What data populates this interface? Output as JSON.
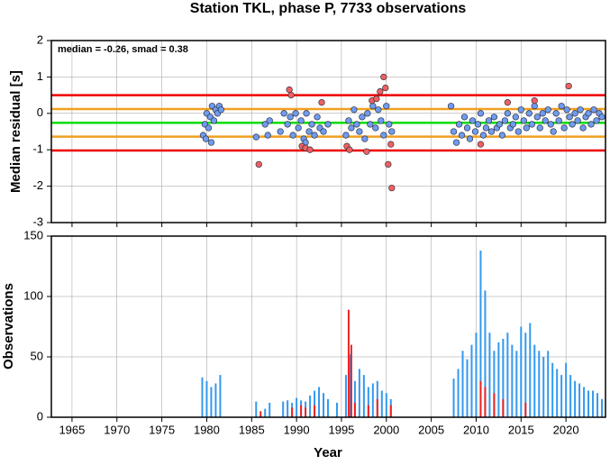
{
  "chart_data": [
    {
      "type": "scatter",
      "title": "Station TKL, phase P, 7733 observations",
      "ylabel": "Median residual [s]",
      "annotation": "median = -0.26, smad = 0.38",
      "xlim": [
        1962.7,
        2024.4
      ],
      "ylim": [
        -3,
        2
      ],
      "yticks": [
        -3,
        -2,
        -1,
        0,
        1,
        2
      ],
      "grid": true,
      "hlines": [
        {
          "value": 0.5,
          "color": "#ee0000"
        },
        {
          "value": -1.02,
          "color": "#ee0000"
        },
        {
          "value": 0.12,
          "color": "#f0a020"
        },
        {
          "value": -0.64,
          "color": "#f0a020"
        },
        {
          "value": -0.26,
          "color": "#00dd00"
        }
      ],
      "series": [
        {
          "color": "#6e9cf0",
          "x": [
            1979.6,
            1979.8,
            1980.0,
            1980.2,
            1980.4,
            1980.6,
            1980.8,
            1981.0,
            1981.2,
            1981.4,
            1981.6,
            1980.5,
            1979.9,
            1985.5,
            1986.5,
            1986.8,
            1987.0,
            1988.2,
            1988.6,
            1989.0,
            1989.3,
            1989.6,
            1989.9,
            1990.2,
            1990.5,
            1990.8,
            1991.1,
            1991.4,
            1991.7,
            1992.0,
            1992.3,
            1992.6,
            1993.0,
            1993.5,
            1991.0,
            1995.5,
            1995.8,
            1996.1,
            1996.4,
            1996.7,
            1997.0,
            1997.3,
            1997.6,
            1997.9,
            1998.2,
            1998.5,
            1998.8,
            1999.1,
            1999.4,
            1999.7,
            2000.0,
            2000.3,
            2000.6,
            2007.2,
            2007.5,
            2007.8,
            2008.1,
            2008.4,
            2008.7,
            2009.0,
            2009.3,
            2009.6,
            2009.9,
            2010.2,
            2010.5,
            2010.8,
            2011.1,
            2011.4,
            2011.7,
            2012.0,
            2012.3,
            2012.6,
            2012.9,
            2013.2,
            2013.5,
            2013.8,
            2014.1,
            2014.4,
            2014.7,
            2015.0,
            2015.3,
            2015.6,
            2015.9,
            2016.2,
            2016.5,
            2016.8,
            2017.1,
            2017.4,
            2017.7,
            2018.0,
            2018.3,
            2018.6,
            2018.9,
            2019.2,
            2019.5,
            2019.8,
            2020.1,
            2020.4,
            2020.7,
            2021.0,
            2021.3,
            2021.6,
            2021.9,
            2022.2,
            2022.5,
            2022.8,
            2023.1,
            2023.4,
            2023.7,
            2024.0
          ],
          "y": [
            -0.6,
            -0.3,
            0.0,
            -0.4,
            -0.1,
            0.2,
            -0.2,
            0.1,
            0.0,
            0.2,
            0.1,
            -0.8,
            -0.7,
            -0.65,
            -0.3,
            -0.6,
            -0.2,
            -0.5,
            0.0,
            -0.3,
            -0.1,
            -0.6,
            0.0,
            -0.4,
            -0.2,
            -0.7,
            0.0,
            -0.5,
            -0.3,
            -0.6,
            -0.1,
            -0.4,
            -0.5,
            -0.3,
            -0.8,
            -0.6,
            -0.2,
            -0.4,
            0.1,
            -0.3,
            -0.5,
            -0.1,
            -0.7,
            0.0,
            -0.3,
            0.2,
            -0.4,
            0.1,
            -0.2,
            -0.6,
            0.2,
            -0.3,
            -0.5,
            0.2,
            -0.5,
            -0.8,
            -0.3,
            -0.6,
            -0.1,
            -0.4,
            -0.7,
            -0.2,
            -0.5,
            -0.3,
            0.0,
            -0.6,
            -0.4,
            -0.2,
            -0.5,
            -0.1,
            -0.4,
            -0.3,
            -0.6,
            -0.2,
            0.0,
            -0.4,
            -0.3,
            -0.1,
            -0.5,
            0.1,
            -0.2,
            -0.4,
            0.0,
            -0.3,
            0.2,
            -0.1,
            -0.4,
            0.0,
            -0.2,
            0.1,
            -0.3,
            -0.5,
            0.0,
            -0.2,
            0.2,
            -0.4,
            0.1,
            -0.1,
            -0.3,
            0.0,
            -0.2,
            0.1,
            -0.4,
            -0.1,
            0.0,
            -0.3,
            0.1,
            -0.2,
            0.0,
            -0.1
          ]
        },
        {
          "color": "#f06060",
          "x": [
            1985.8,
            1989.2,
            1989.4,
            1990.6,
            1991.0,
            1991.5,
            1992.8,
            1995.6,
            1995.9,
            1997.8,
            1998.4,
            1998.9,
            1999.3,
            1999.7,
            1999.9,
            2000.2,
            2000.6,
            2000.5,
            2010.5,
            2013.5,
            2020.3,
            2016.5
          ],
          "y": [
            -1.4,
            0.65,
            0.5,
            -0.9,
            -0.95,
            -1.0,
            0.3,
            -0.9,
            -1.0,
            -1.05,
            0.35,
            0.4,
            0.6,
            1.0,
            0.7,
            -1.4,
            -2.05,
            -0.85,
            -0.85,
            0.3,
            0.75,
            0.35
          ]
        }
      ]
    },
    {
      "type": "bar",
      "ylabel": "Observations",
      "xlabel": "Year",
      "xlim": [
        1962.7,
        2024.4
      ],
      "xticks": [
        1965,
        1970,
        1975,
        1980,
        1985,
        1990,
        1995,
        2000,
        2005,
        2010,
        2015,
        2020
      ],
      "ylim": [
        0,
        150
      ],
      "yticks": [
        0,
        50,
        100,
        150
      ],
      "grid": true,
      "series": [
        {
          "color": "#3399ee",
          "x": [
            1979.5,
            1980,
            1980.5,
            1981,
            1981.5,
            1985.5,
            1986.5,
            1987,
            1988.5,
            1989,
            1989.5,
            1990,
            1990.5,
            1991,
            1991.5,
            1992,
            1992.5,
            1993,
            1993.5,
            1994.5,
            1995.5,
            1996,
            1996.5,
            1997,
            1997.5,
            1998,
            1998.5,
            1999,
            1999.5,
            2000,
            2000.5,
            2007.5,
            2008,
            2008.5,
            2009,
            2009.5,
            2010,
            2010.5,
            2011,
            2011.5,
            2012,
            2012.5,
            2013,
            2013.5,
            2014,
            2014.5,
            2015,
            2015.5,
            2016,
            2016.5,
            2017,
            2017.5,
            2018,
            2018.5,
            2019,
            2019.5,
            2020,
            2020.5,
            2021,
            2021.5,
            2022,
            2022.5,
            2023,
            2023.5,
            2024
          ],
          "values": [
            33,
            30,
            25,
            28,
            35,
            13,
            7,
            12,
            13,
            14,
            12,
            16,
            14,
            13,
            18,
            22,
            25,
            20,
            15,
            12,
            35,
            52,
            30,
            40,
            35,
            25,
            28,
            30,
            22,
            20,
            15,
            32,
            40,
            55,
            48,
            60,
            70,
            138,
            105,
            70,
            55,
            62,
            65,
            70,
            60,
            55,
            75,
            70,
            78,
            60,
            55,
            50,
            55,
            45,
            40,
            35,
            45,
            35,
            30,
            28,
            25,
            22,
            22,
            20,
            15
          ]
        },
        {
          "color": "#ee2222",
          "x": [
            1986,
            1989.5,
            1990.5,
            1991,
            1992,
            1995.8,
            1996.1,
            1996.5,
            1998,
            1999,
            2000.5,
            2010.5,
            2011,
            2012,
            2013,
            2015.5
          ],
          "values": [
            5,
            8,
            10,
            8,
            10,
            89,
            60,
            12,
            10,
            15,
            10,
            30,
            25,
            20,
            15,
            12
          ]
        }
      ]
    }
  ]
}
